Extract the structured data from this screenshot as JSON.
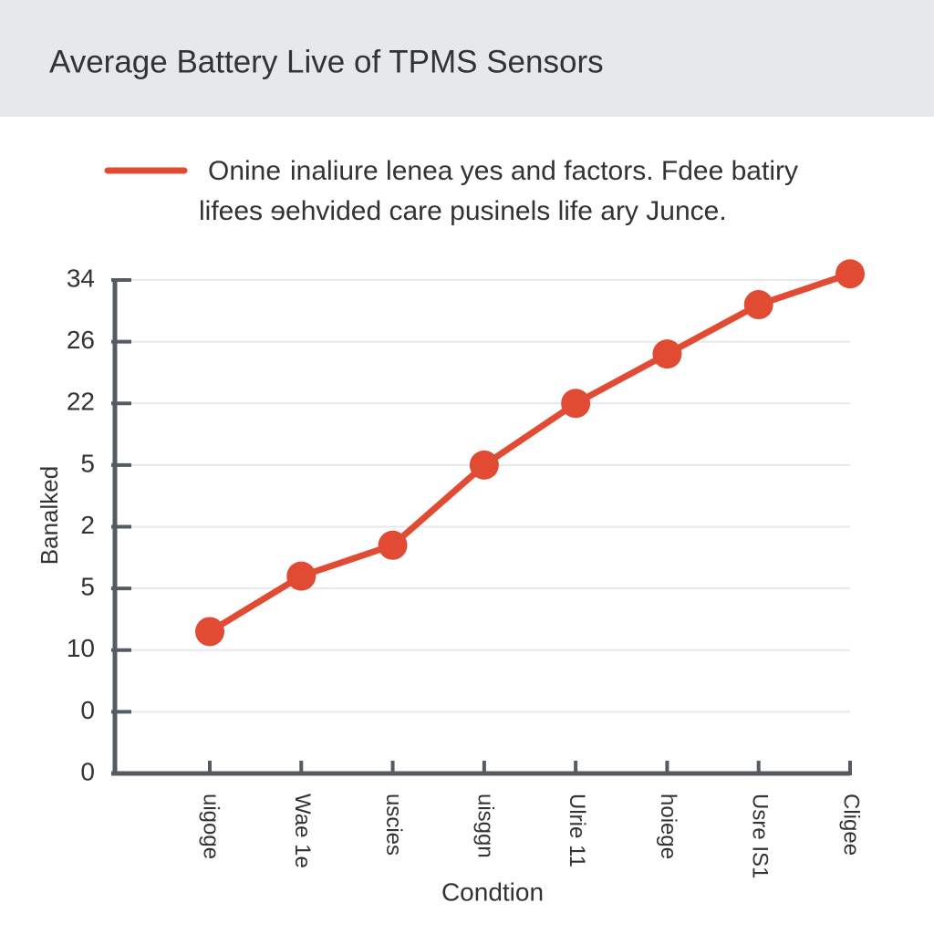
{
  "chart_data": {
    "type": "line",
    "title": "Average Battery Live of TPMS Sensors",
    "subtitle": [
      "inaliure lenea yes and factors. Fdee batiry",
      "lifees ɘehvided care pusinels life ary Junce."
    ],
    "categories": [
      "uiɡoɡe",
      "Wae 1e",
      "uscies",
      "uisɡɡn",
      "Ulrie 11",
      "hoieɡe",
      "Usre IS1",
      "Cligee"
    ],
    "series": [
      {
        "name": "Onine",
        "color": "#e14b33",
        "values": [
          2.3,
          3.2,
          3.7,
          5.0,
          6.0,
          6.8,
          7.6,
          8.1
        ]
      }
    ],
    "ylim": [
      0,
      8
    ],
    "yticks": [
      0,
      {
        "value": 1,
        "label": "0"
      },
      {
        "value": 2,
        "label": "10"
      },
      {
        "value": 3,
        "label": "5"
      },
      {
        "value": 4,
        "label": "2"
      },
      5,
      {
        "value": 6,
        "label": "22"
      },
      {
        "value": 7,
        "label": "26"
      },
      {
        "value": 8,
        "label": "34"
      }
    ],
    "y_label": "Banalked",
    "x_label": "Condtion",
    "grid": true
  }
}
